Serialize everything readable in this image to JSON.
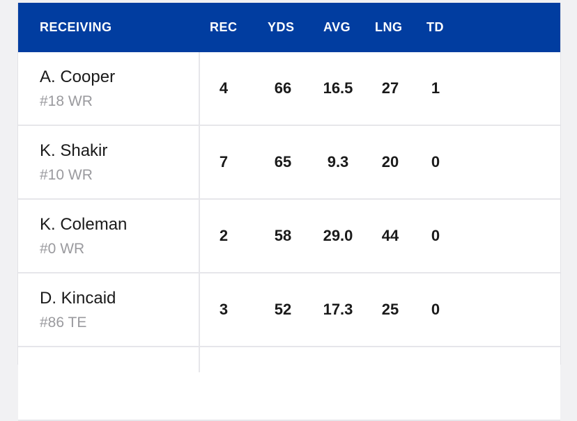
{
  "table": {
    "columns": {
      "player": "RECEIVING",
      "rec": "REC",
      "yds": "YDS",
      "avg": "AVG",
      "lng": "LNG",
      "td": "TD"
    },
    "rows": [
      {
        "name": "A. Cooper",
        "meta": "#18 WR",
        "rec": "4",
        "yds": "66",
        "avg": "16.5",
        "lng": "27",
        "td": "1"
      },
      {
        "name": "K. Shakir",
        "meta": "#10 WR",
        "rec": "7",
        "yds": "65",
        "avg": "9.3",
        "lng": "20",
        "td": "0"
      },
      {
        "name": "K. Coleman",
        "meta": "#0 WR",
        "rec": "2",
        "yds": "58",
        "avg": "29.0",
        "lng": "44",
        "td": "0"
      },
      {
        "name": "D. Kincaid",
        "meta": "#86 TE",
        "rec": "3",
        "yds": "52",
        "avg": "17.3",
        "lng": "25",
        "td": "0"
      }
    ]
  },
  "colors": {
    "header_bg": "#013da0",
    "header_text": "#ffffff",
    "meta_text": "#9a9a9e"
  }
}
